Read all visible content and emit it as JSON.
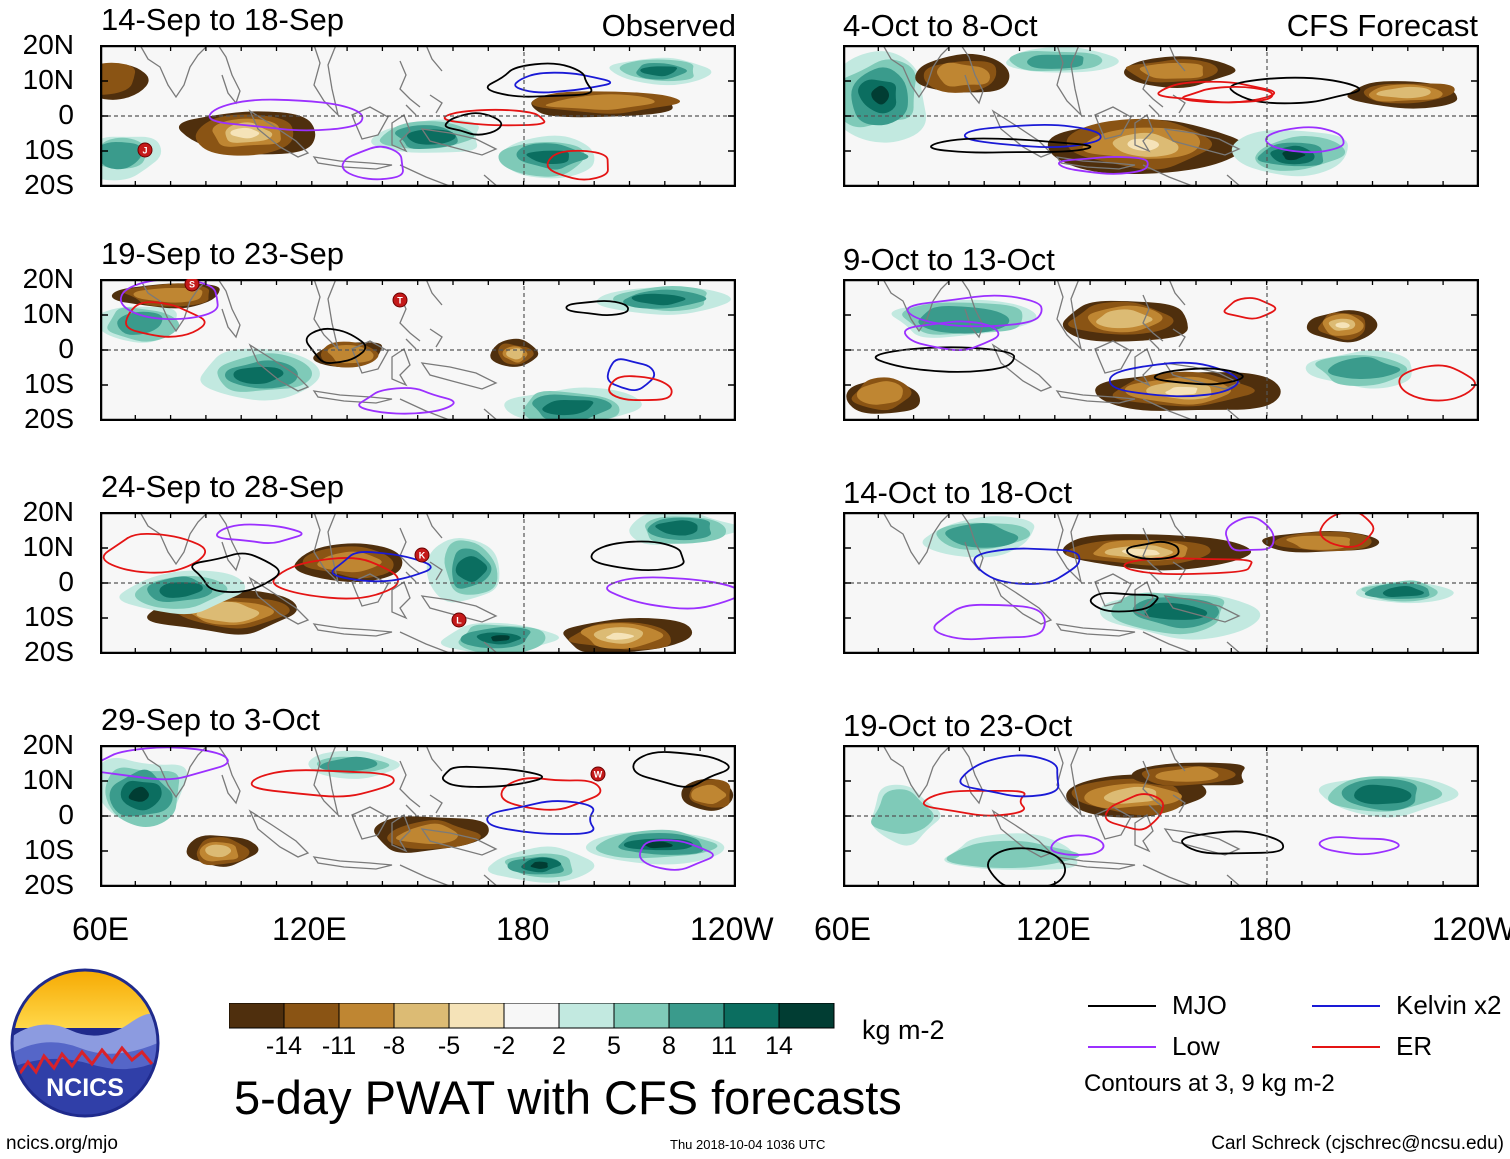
{
  "header": {
    "observed_label": "Observed",
    "forecast_label": "CFS Forecast"
  },
  "panels": {
    "left": [
      {
        "title": "14-Sep to 18-Sep"
      },
      {
        "title": "19-Sep to 23-Sep"
      },
      {
        "title": "24-Sep to 28-Sep"
      },
      {
        "title": "29-Sep to 3-Oct"
      }
    ],
    "right": [
      {
        "title": "4-Oct to 8-Oct"
      },
      {
        "title": "9-Oct to 13-Oct"
      },
      {
        "title": "14-Oct to 18-Oct"
      },
      {
        "title": "19-Oct to 23-Oct"
      }
    ]
  },
  "axes": {
    "lat_labels": [
      "20N",
      "10N",
      "0",
      "10S",
      "20S"
    ],
    "lon_labels": [
      "60E",
      "120E",
      "180",
      "120W"
    ]
  },
  "storms": [
    "J",
    "S",
    "T",
    "K",
    "L",
    "W"
  ],
  "colorbar": {
    "labels": [
      "-14",
      "-11",
      "-8",
      "-5",
      "-2",
      "2",
      "5",
      "8",
      "11",
      "14"
    ],
    "colors": [
      "#4f2f0d",
      "#8a5414",
      "#bf8632",
      "#dcbb74",
      "#f5e3b8",
      "#f7f7f7",
      "#c2e9e0",
      "#7fcab8",
      "#3a9b8c",
      "#0b6e60",
      "#013d33"
    ],
    "units": "kg m-2"
  },
  "legend": {
    "items": [
      {
        "label": "MJO",
        "color": "#000000"
      },
      {
        "label": "Kelvin x2",
        "color": "#1a1ad6"
      },
      {
        "label": "Low",
        "color": "#9b30ff"
      },
      {
        "label": "ER",
        "color": "#e41414"
      }
    ],
    "contours_note": "Contours at 3, 9 kg m-2"
  },
  "logo": {
    "text": "NCICS"
  },
  "footer": {
    "title": "5-day PWAT with CFS forecasts",
    "site": "ncics.org/mjo",
    "timestamp": "Thu 2018-10-04 1036 UTC",
    "author": "Carl Schreck (cjschrec@ncsu.edu)"
  }
}
